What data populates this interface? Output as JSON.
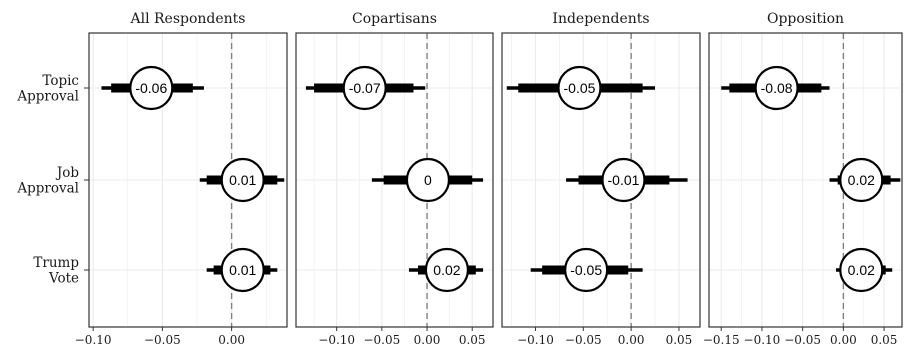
{
  "chart_data": {
    "type": "forest",
    "categories": [
      "Topic\nApproval",
      "Job\nApproval",
      "Trump\nVote"
    ],
    "panels": [
      {
        "title": "All Respondents",
        "xlim": [
          -0.103,
          0.04
        ],
        "ticks": [
          -0.1,
          -0.05,
          0.0
        ],
        "tick_labels": [
          "−0.10",
          "−0.05",
          "0.00"
        ],
        "estimates": [
          {
            "category": "Topic\nApproval",
            "value": -0.058,
            "label": "-0.06",
            "ci90": [
              -0.087,
              -0.028
            ],
            "ci95": [
              -0.094,
              -0.02
            ]
          },
          {
            "category": "Job\nApproval",
            "value": 0.008,
            "label": "0.01",
            "ci90": [
              -0.018,
              0.033
            ],
            "ci95": [
              -0.023,
              0.038
            ]
          },
          {
            "category": "Trump\nVote",
            "value": 0.008,
            "label": "0.01",
            "ci90": [
              -0.013,
              0.028
            ],
            "ci95": [
              -0.018,
              0.033
            ]
          }
        ]
      },
      {
        "title": "Copartisans",
        "xlim": [
          -0.145,
          0.073
        ],
        "ticks": [
          -0.1,
          -0.05,
          0.0,
          0.05
        ],
        "tick_labels": [
          "−0.10",
          "−0.05",
          "0.00",
          "0.05"
        ],
        "estimates": [
          {
            "category": "Topic\nApproval",
            "value": -0.069,
            "label": "-0.07",
            "ci90": [
              -0.125,
              -0.015
            ],
            "ci95": [
              -0.134,
              -0.002
            ]
          },
          {
            "category": "Job\nApproval",
            "value": 0.001,
            "label": "0",
            "ci90": [
              -0.048,
              0.05
            ],
            "ci95": [
              -0.061,
              0.062
            ]
          },
          {
            "category": "Trump\nVote",
            "value": 0.022,
            "label": "0.02",
            "ci90": [
              -0.01,
              0.054
            ],
            "ci95": [
              -0.02,
              0.062
            ]
          }
        ]
      },
      {
        "title": "Independents",
        "xlim": [
          -0.135,
          0.072
        ],
        "ticks": [
          -0.1,
          -0.05,
          0.0,
          0.05
        ],
        "tick_labels": [
          "−0.10",
          "−0.05",
          "0.00",
          "0.05"
        ],
        "estimates": [
          {
            "category": "Topic\nApproval",
            "value": -0.054,
            "label": "-0.05",
            "ci90": [
              -0.118,
              0.012
            ],
            "ci95": [
              -0.13,
              0.025
            ]
          },
          {
            "category": "Job\nApproval",
            "value": -0.008,
            "label": "-0.01",
            "ci90": [
              -0.055,
              0.04
            ],
            "ci95": [
              -0.068,
              0.059
            ]
          },
          {
            "category": "Trump\nVote",
            "value": -0.047,
            "label": "-0.05",
            "ci90": [
              -0.093,
              -0.003
            ],
            "ci95": [
              -0.105,
              0.012
            ]
          }
        ]
      },
      {
        "title": "Opposition",
        "xlim": [
          -0.165,
          0.072
        ],
        "ticks": [
          -0.15,
          -0.1,
          -0.05,
          0.0,
          0.05
        ],
        "tick_labels": [
          "−0.15",
          "−0.10",
          "−0.05",
          "0.00",
          "0.05"
        ],
        "estimates": [
          {
            "category": "Topic\nApproval",
            "value": -0.082,
            "label": "-0.08",
            "ci90": [
              -0.14,
              -0.027
            ],
            "ci95": [
              -0.15,
              -0.017
            ]
          },
          {
            "category": "Job\nApproval",
            "value": 0.022,
            "label": "0.02",
            "ci90": [
              -0.007,
              0.058
            ],
            "ci95": [
              -0.017,
              0.07
            ]
          },
          {
            "category": "Trump\nVote",
            "value": 0.022,
            "label": "0.02",
            "ci90": [
              -0.003,
              0.052
            ],
            "ci95": [
              -0.009,
              0.06
            ]
          }
        ]
      }
    ],
    "reference_line": 0,
    "grid": true,
    "legend": "none",
    "colors": {
      "line": "#000000",
      "zero_line": "#808080",
      "grid": "#ebebeb",
      "point_fill": "#ffffff"
    }
  }
}
